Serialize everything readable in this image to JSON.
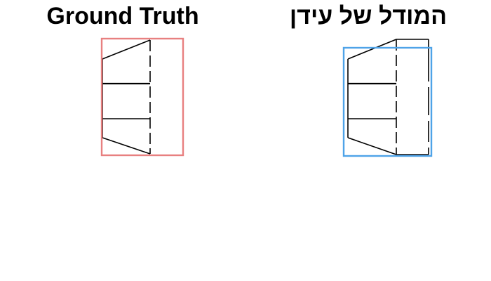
{
  "panels": {
    "left": {
      "title": "Ground Truth",
      "box_color": "#e88080"
    },
    "right": {
      "title": "המודל של עידן",
      "box_color": "#4ea3e8"
    }
  },
  "line_color": "#000000",
  "background": "#ffffff"
}
